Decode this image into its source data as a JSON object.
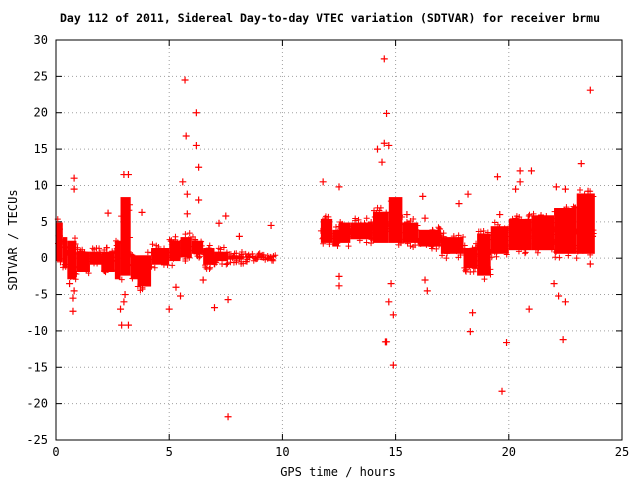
{
  "chart_data": {
    "type": "scatter",
    "title": "Day 112 of 2011, Sidereal Day-to-day VTEC variation (SDTVAR) for receiver brmu",
    "xlabel": "GPS time / hours",
    "ylabel": "SDTVAR / TECUs",
    "xlim": [
      0,
      25
    ],
    "ylim": [
      -25,
      30
    ],
    "xticks": [
      "0",
      "5",
      "10",
      "15",
      "20",
      "25"
    ],
    "yticks": [
      "30",
      "25",
      "20",
      "15",
      "10",
      "5",
      "0",
      "-5",
      "-10",
      "-15",
      "-20",
      "-25"
    ],
    "grid": true,
    "marker": "+",
    "series_color": "#ff0000",
    "series": [
      {
        "values_note": "",
        "bands": [
          [
            0.0,
            0.3,
            -1.0,
            5.5
          ],
          [
            0.3,
            0.5,
            -2.0,
            3.5
          ],
          [
            0.5,
            0.9,
            -3.5,
            3.0
          ],
          [
            0.9,
            1.5,
            -2.5,
            1.5
          ],
          [
            1.5,
            2.0,
            -1.5,
            1.5
          ],
          [
            2.0,
            2.6,
            -2.5,
            1.5
          ],
          [
            2.6,
            2.85,
            -3.5,
            3.0
          ],
          [
            2.85,
            3.3,
            -3.0,
            9.0
          ],
          [
            3.3,
            3.6,
            -3.5,
            1.0
          ],
          [
            3.6,
            4.2,
            -4.5,
            1.0
          ],
          [
            4.2,
            5.0,
            -1.5,
            2.0
          ],
          [
            5.0,
            5.5,
            -1.0,
            3.0
          ],
          [
            5.5,
            6.0,
            -0.5,
            3.5
          ],
          [
            6.0,
            6.5,
            0.0,
            3.0
          ],
          [
            6.5,
            7.0,
            -1.5,
            2.0
          ],
          [
            7.0,
            7.6,
            -1.0,
            1.5
          ],
          [
            7.6,
            8.3,
            -0.8,
            1.0
          ],
          [
            8.3,
            9.0,
            -0.5,
            0.8
          ],
          [
            9.0,
            9.7,
            -0.4,
            0.5
          ],
          [
            11.7,
            12.2,
            1.5,
            6.0
          ],
          [
            12.2,
            12.5,
            1.0,
            4.5
          ],
          [
            12.5,
            13.0,
            1.5,
            5.5
          ],
          [
            13.0,
            14.0,
            2.0,
            5.5
          ],
          [
            14.0,
            14.7,
            1.5,
            7.0
          ],
          [
            14.7,
            15.3,
            1.5,
            9.0
          ],
          [
            15.3,
            16.0,
            1.5,
            5.5
          ],
          [
            16.0,
            17.0,
            1.0,
            4.5
          ],
          [
            17.0,
            18.0,
            0.0,
            3.5
          ],
          [
            18.0,
            18.6,
            -2.0,
            2.0
          ],
          [
            18.6,
            19.2,
            -3.0,
            4.0
          ],
          [
            19.2,
            20.0,
            0.0,
            5.0
          ],
          [
            20.0,
            21.0,
            0.5,
            6.0
          ],
          [
            21.0,
            22.0,
            0.5,
            6.5
          ],
          [
            22.0,
            23.0,
            0.0,
            7.5
          ],
          [
            23.0,
            23.8,
            0.0,
            9.5
          ]
        ],
        "outliers": [
          [
            0.15,
            4.0
          ],
          [
            0.2,
            -0.5
          ],
          [
            0.6,
            -3.5
          ],
          [
            0.75,
            -5.5
          ],
          [
            0.75,
            -7.3
          ],
          [
            0.8,
            9.5
          ],
          [
            0.8,
            11.0
          ],
          [
            0.8,
            -4.5
          ],
          [
            2.3,
            6.2
          ],
          [
            2.85,
            -7.0
          ],
          [
            2.9,
            -9.2
          ],
          [
            3.0,
            11.5
          ],
          [
            3.2,
            11.5
          ],
          [
            3.2,
            -9.2
          ],
          [
            3.0,
            -6.0
          ],
          [
            3.05,
            -5.0
          ],
          [
            3.8,
            6.3
          ],
          [
            5.0,
            -7.0
          ],
          [
            5.3,
            -4.0
          ],
          [
            5.5,
            -5.2
          ],
          [
            5.6,
            10.5
          ],
          [
            5.7,
            24.5
          ],
          [
            5.75,
            16.8
          ],
          [
            5.8,
            8.8
          ],
          [
            5.8,
            6.1
          ],
          [
            6.2,
            20.0
          ],
          [
            6.2,
            15.5
          ],
          [
            6.3,
            12.5
          ],
          [
            6.3,
            8.0
          ],
          [
            6.5,
            -3.0
          ],
          [
            7.0,
            -6.8
          ],
          [
            7.2,
            4.8
          ],
          [
            7.5,
            5.8
          ],
          [
            7.6,
            -5.7
          ],
          [
            7.6,
            -21.8
          ],
          [
            8.1,
            3.0
          ],
          [
            9.5,
            4.5
          ],
          [
            11.8,
            10.5
          ],
          [
            12.5,
            9.8
          ],
          [
            12.5,
            -2.5
          ],
          [
            12.5,
            -3.8
          ],
          [
            14.2,
            15.0
          ],
          [
            14.4,
            13.2
          ],
          [
            14.5,
            27.4
          ],
          [
            14.5,
            15.8
          ],
          [
            14.55,
            -11.5
          ],
          [
            14.6,
            19.9
          ],
          [
            14.6,
            -11.5
          ],
          [
            14.7,
            15.5
          ],
          [
            14.7,
            -6.0
          ],
          [
            14.8,
            -3.5
          ],
          [
            14.9,
            -7.8
          ],
          [
            14.9,
            -14.7
          ],
          [
            15.5,
            6.0
          ],
          [
            16.2,
            8.5
          ],
          [
            16.3,
            5.5
          ],
          [
            16.3,
            -3.0
          ],
          [
            16.4,
            -4.5
          ],
          [
            17.8,
            7.5
          ],
          [
            18.2,
            8.8
          ],
          [
            18.3,
            -10.1
          ],
          [
            18.4,
            -7.5
          ],
          [
            19.5,
            11.2
          ],
          [
            19.6,
            6.0
          ],
          [
            19.7,
            -18.3
          ],
          [
            19.9,
            -11.6
          ],
          [
            20.3,
            9.5
          ],
          [
            20.5,
            12.0
          ],
          [
            20.5,
            10.5
          ],
          [
            20.9,
            -7.0
          ],
          [
            21.0,
            12.0
          ],
          [
            22.0,
            -3.5
          ],
          [
            22.1,
            9.8
          ],
          [
            22.2,
            -5.2
          ],
          [
            22.4,
            -11.2
          ],
          [
            22.5,
            -6.0
          ],
          [
            22.5,
            9.5
          ],
          [
            23.2,
            13.0
          ],
          [
            23.5,
            9.2
          ],
          [
            23.6,
            23.1
          ],
          [
            23.6,
            -0.8
          ],
          [
            23.7,
            3.0
          ]
        ]
      }
    ]
  }
}
